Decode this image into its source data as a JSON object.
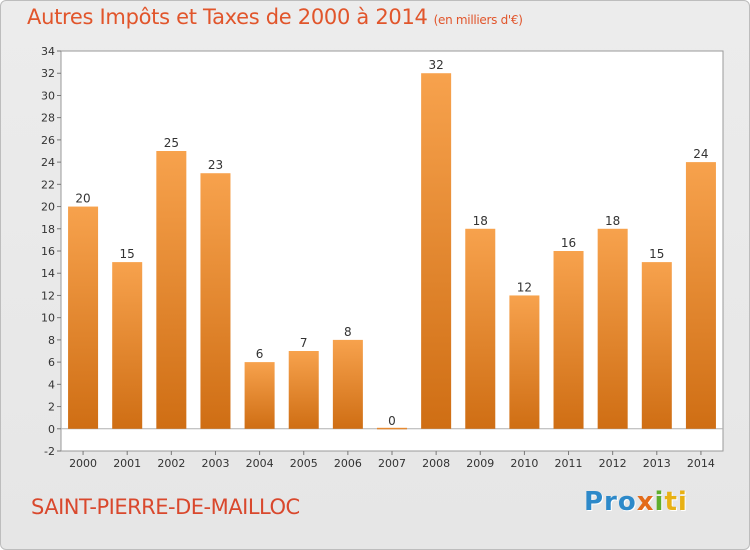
{
  "header": {
    "title": "Autres Impôts et Taxes de 2000 à 2014",
    "subtitle": "(en milliers d'€)"
  },
  "footer": {
    "town": "SAINT-PIERRE-DE-MAILLOC",
    "logo": {
      "parts": [
        "Pro",
        "x",
        "i",
        "ti"
      ]
    }
  },
  "colors": {
    "title": "#e1552b",
    "bar_top": "#f7a24d",
    "bar_bottom": "#cf6e14",
    "plot_bg": "#ffffff"
  },
  "chart_data": {
    "type": "bar",
    "title": "Autres Impôts et Taxes de 2000 à 2014",
    "subtitle": "(en milliers d'€)",
    "categories": [
      "2000",
      "2001",
      "2002",
      "2003",
      "2004",
      "2005",
      "2006",
      "2007",
      "2008",
      "2009",
      "2010",
      "2011",
      "2012",
      "2013",
      "2014"
    ],
    "values": [
      20,
      15,
      25,
      23,
      6,
      7,
      8,
      0,
      32,
      18,
      12,
      16,
      18,
      15,
      24
    ],
    "ylim": [
      -2,
      34
    ],
    "yticks": [
      -2,
      0,
      2,
      4,
      6,
      8,
      10,
      12,
      14,
      16,
      18,
      20,
      22,
      24,
      26,
      28,
      30,
      32,
      34
    ],
    "xlabel": "",
    "ylabel": "",
    "grid": false,
    "data_labels": true
  }
}
